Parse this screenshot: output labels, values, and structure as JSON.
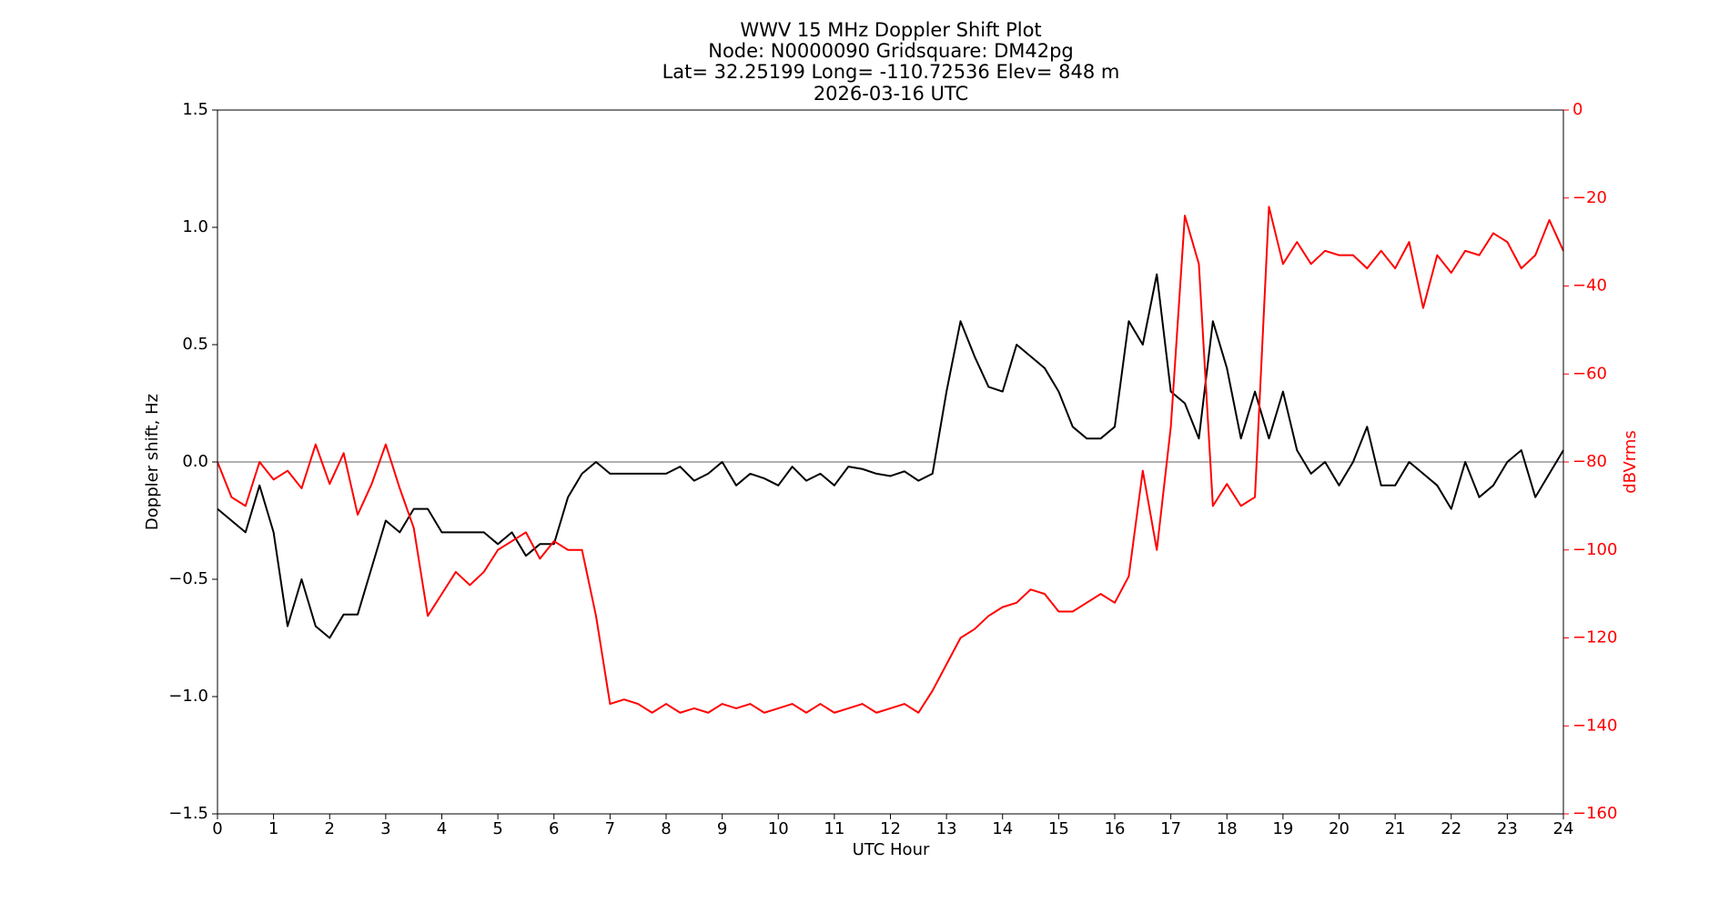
{
  "chart_data": {
    "type": "line",
    "title": [
      "WWV 15 MHz Doppler Shift Plot",
      "Node:  N0000090     Gridsquare:  DM42pg",
      "Lat= 32.25199    Long= -110.72536    Elev= 848 m",
      "2026-03-16  UTC"
    ],
    "xlabel": "UTC Hour",
    "ylabel": "Doppler shift, Hz",
    "y2label": "dBVrms",
    "y2color": "#ff0000",
    "xlim": [
      0,
      24
    ],
    "xticks": [
      0,
      1,
      2,
      3,
      4,
      5,
      6,
      7,
      8,
      9,
      10,
      11,
      12,
      13,
      14,
      15,
      16,
      17,
      18,
      19,
      20,
      21,
      22,
      23,
      24
    ],
    "ylim": [
      -1.5,
      1.5
    ],
    "yticks": [
      {
        "value": -1.5,
        "label": "−1.5"
      },
      {
        "value": -1.0,
        "label": "−1.0"
      },
      {
        "value": -0.5,
        "label": "−0.5"
      },
      {
        "value": 0.0,
        "label": "0.0"
      },
      0.5,
      {
        "value": 1.0,
        "label": "1.0"
      },
      1.5
    ],
    "y2lim": [
      -160,
      0
    ],
    "y2ticks": [
      {
        "value": -160,
        "label": "−160"
      },
      {
        "value": -140,
        "label": "−140"
      },
      {
        "value": -120,
        "label": "−120"
      },
      {
        "value": -100,
        "label": "−100"
      },
      {
        "value": -80,
        "label": "−80"
      },
      {
        "value": -60,
        "label": "−60"
      },
      {
        "value": -40,
        "label": "−40"
      },
      {
        "value": -20,
        "label": "−20"
      },
      0
    ],
    "hlines": [
      {
        "value": 0,
        "color": "#808080"
      }
    ],
    "x": [
      0,
      0.25,
      0.5,
      0.75,
      1,
      1.25,
      1.5,
      1.75,
      2,
      2.25,
      2.5,
      2.75,
      3,
      3.25,
      3.5,
      3.75,
      4,
      4.25,
      4.5,
      4.75,
      5,
      5.25,
      5.5,
      5.75,
      6,
      6.25,
      6.5,
      6.75,
      7,
      7.25,
      7.5,
      7.75,
      8,
      8.25,
      8.5,
      8.75,
      9,
      9.25,
      9.5,
      9.75,
      10,
      10.25,
      10.5,
      10.75,
      11,
      11.25,
      11.5,
      11.75,
      12,
      12.25,
      12.5,
      12.75,
      13,
      13.25,
      13.5,
      13.75,
      14,
      14.25,
      14.5,
      14.75,
      15,
      15.25,
      15.5,
      15.75,
      16,
      16.25,
      16.5,
      16.75,
      17,
      17.25,
      17.5,
      17.75,
      18,
      18.25,
      18.5,
      18.75,
      19,
      19.25,
      19.5,
      19.75,
      20,
      20.25,
      20.5,
      20.75,
      21,
      21.25,
      21.5,
      21.75,
      22,
      22.25,
      22.5,
      22.75,
      23,
      23.25,
      23.5,
      23.75,
      24
    ],
    "series": [
      {
        "color": "#000000",
        "values": [
          -0.2,
          -0.25,
          -0.3,
          -0.1,
          -0.3,
          -0.7,
          -0.5,
          -0.7,
          -0.75,
          -0.65,
          -0.65,
          -0.45,
          -0.25,
          -0.3,
          -0.2,
          -0.2,
          -0.3,
          -0.3,
          -0.3,
          -0.3,
          -0.35,
          -0.3,
          -0.4,
          -0.35,
          -0.35,
          -0.15,
          -0.05,
          0.0,
          -0.05,
          -0.05,
          -0.05,
          -0.05,
          -0.05,
          -0.02,
          -0.08,
          -0.05,
          0.0,
          -0.1,
          -0.05,
          -0.07,
          -0.1,
          -0.02,
          -0.08,
          -0.05,
          -0.1,
          -0.02,
          -0.03,
          -0.05,
          -0.06,
          -0.04,
          -0.08,
          -0.05,
          0.3,
          0.6,
          0.45,
          0.32,
          0.3,
          0.5,
          0.45,
          0.4,
          0.3,
          0.15,
          0.1,
          0.1,
          0.15,
          0.6,
          0.5,
          0.8,
          0.3,
          0.25,
          0.1,
          0.6,
          0.4,
          0.1,
          0.3,
          0.1,
          0.3,
          0.05,
          -0.05,
          0.0,
          -0.1,
          0.0,
          0.15,
          -0.1,
          -0.1,
          0.0,
          -0.05,
          -0.1,
          -0.2,
          0.0,
          -0.15,
          -0.1,
          0.0,
          0.05,
          -0.15,
          -0.05,
          0.05
        ]
      },
      {
        "color": "#ff0000",
        "axis": "y2",
        "values": [
          -80,
          -88,
          -90,
          -80,
          -84,
          -82,
          -86,
          -76,
          -85,
          -78,
          -92,
          -85,
          -76,
          -86,
          -95,
          -115,
          -110,
          -105,
          -108,
          -105,
          -100,
          -98,
          -96,
          -102,
          -98,
          -100,
          -100,
          -115,
          -135,
          -134,
          -135,
          -137,
          -135,
          -137,
          -136,
          -137,
          -135,
          -136,
          -135,
          -137,
          -136,
          -135,
          -137,
          -135,
          -137,
          -136,
          -135,
          -137,
          -136,
          -135,
          -137,
          -132,
          -126,
          -120,
          -118,
          -115,
          -113,
          -112,
          -109,
          -110,
          -114,
          -114,
          -112,
          -110,
          -112,
          -106,
          -82,
          -100,
          -72,
          -24,
          -35,
          -90,
          -85,
          -90,
          -88,
          -22,
          -35,
          -30,
          -35,
          -32,
          -33,
          -33,
          -36,
          -32,
          -36,
          -30,
          -45,
          -33,
          -37,
          -32,
          -33,
          -28,
          -30,
          -36,
          -33,
          -25,
          -32
        ]
      }
    ]
  }
}
